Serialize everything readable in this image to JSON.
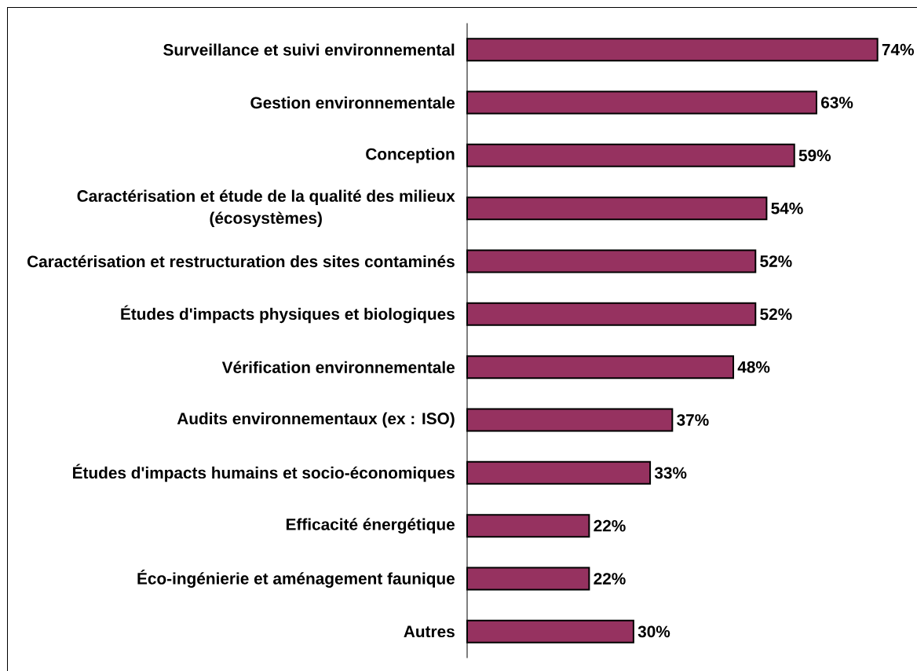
{
  "chart_data": {
    "type": "bar",
    "orientation": "horizontal",
    "categories": [
      "Surveillance et suivi environnemental",
      "Gestion environnementale",
      "Conception",
      "Caractérisation et étude de la qualité des milieux (écosystèmes)",
      "Caractérisation et restructuration des sites contaminés",
      "Études d'impacts physiques et biologiques",
      "Vérification environnementale",
      "Audits environnementaux (ex : ISO)",
      "Études d'impacts humains et socio-économiques",
      "Efficacité énergétique",
      "Éco-ingénierie et aménagement faunique",
      "Autres"
    ],
    "values": [
      74,
      63,
      59,
      54,
      52,
      52,
      48,
      37,
      33,
      22,
      22,
      30
    ],
    "value_labels": [
      "74%",
      "63%",
      "59%",
      "54%",
      "52%",
      "52%",
      "48%",
      "37%",
      "33%",
      "22%",
      "22%",
      "30%"
    ],
    "color": "#963260"
  }
}
